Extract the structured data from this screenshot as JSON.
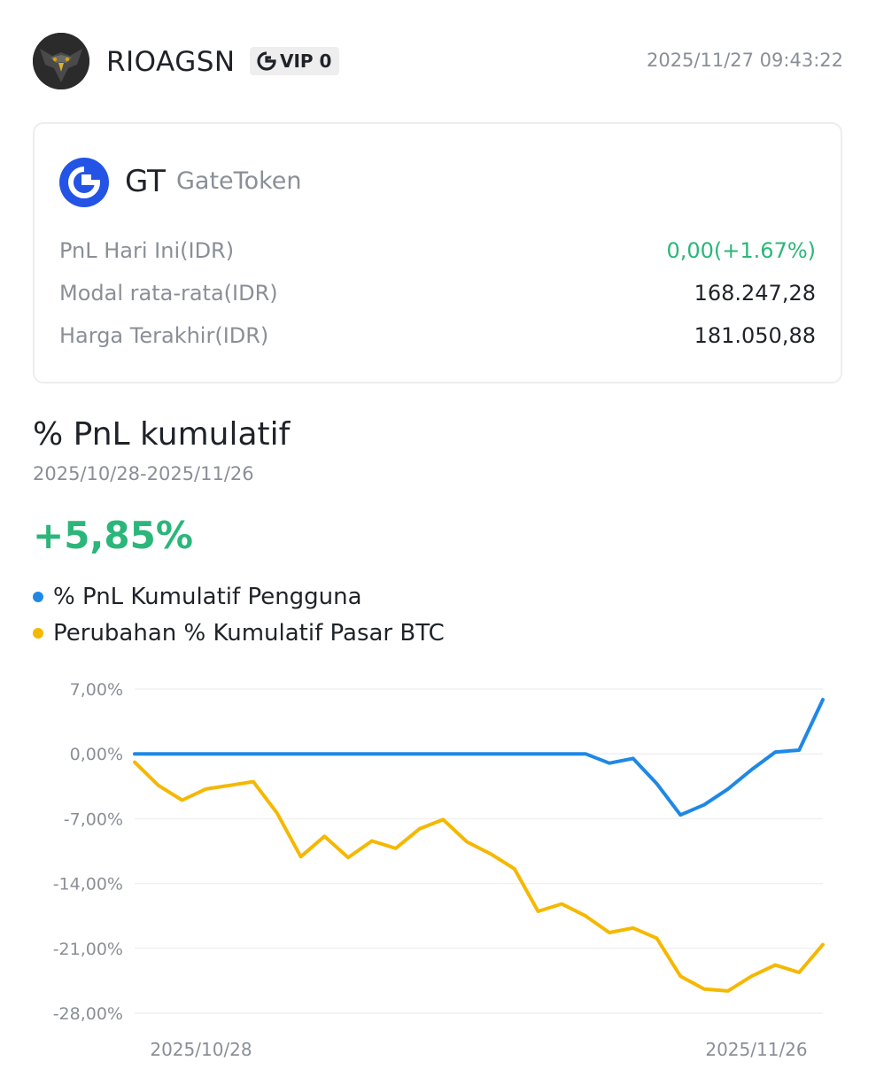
{
  "user": {
    "name": "RIOAGSN",
    "vip_label": "VIP 0",
    "timestamp": "2025/11/27 09:43:22"
  },
  "token": {
    "symbol": "GT",
    "name": "GateToken",
    "brand_color": "#2354e6",
    "rows": [
      {
        "label": "PnL Hari Ini(IDR)",
        "value": "0,00(+1.67%)",
        "positive": true
      },
      {
        "label": "Modal rata-rata(IDR)",
        "value": "168.247,28",
        "positive": false
      },
      {
        "label": "Harga Terakhir(IDR)",
        "value": "181.050,88",
        "positive": false
      }
    ]
  },
  "section": {
    "title": "% PnL kumulatif",
    "date_range": "2025/10/28-2025/11/26",
    "total_pnl": "+5,85%",
    "positive_color": "#2bb67a"
  },
  "chart_data": {
    "type": "line",
    "x": [
      "2025/10/28",
      "2025/10/29",
      "2025/10/30",
      "2025/10/31",
      "2025/11/01",
      "2025/11/02",
      "2025/11/03",
      "2025/11/04",
      "2025/11/05",
      "2025/11/06",
      "2025/11/07",
      "2025/11/08",
      "2025/11/09",
      "2025/11/10",
      "2025/11/11",
      "2025/11/12",
      "2025/11/13",
      "2025/11/14",
      "2025/11/15",
      "2025/11/16",
      "2025/11/17",
      "2025/11/18",
      "2025/11/19",
      "2025/11/20",
      "2025/11/21",
      "2025/11/22",
      "2025/11/23",
      "2025/11/24",
      "2025/11/25",
      "2025/11/26"
    ],
    "series": [
      {
        "name": "% PnL Kumulatif Pengguna",
        "color": "#1e88e5",
        "values": [
          0,
          0,
          0,
          0,
          0,
          0,
          0,
          0,
          0,
          0,
          0,
          0,
          0,
          0,
          0,
          0,
          0,
          0,
          0,
          0,
          -1.0,
          -0.5,
          -3.2,
          -6.6,
          -5.5,
          -3.8,
          -1.7,
          0.2,
          0.4,
          5.85
        ]
      },
      {
        "name": "Perubahan % Kumulatif Pasar BTC",
        "color": "#f5b800",
        "values": [
          -0.9,
          -3.4,
          -5.0,
          -3.8,
          -3.4,
          -3.0,
          -6.4,
          -11.1,
          -8.9,
          -11.2,
          -9.4,
          -10.2,
          -8.1,
          -7.1,
          -9.5,
          -10.8,
          -12.4,
          -17.0,
          -16.2,
          -17.5,
          -19.3,
          -18.8,
          -19.9,
          -24.0,
          -25.4,
          -25.6,
          -24.0,
          -22.8,
          -23.6,
          -20.6
        ]
      }
    ],
    "y_ticks": [
      "7,00%",
      "0,00%",
      "-7,00%",
      "-14,00%",
      "-21,00%",
      "-28,00%"
    ],
    "ylim": [
      -28,
      7
    ],
    "x_tick_labels": [
      "2025/10/28",
      "2025/11/26"
    ],
    "grid": true
  }
}
